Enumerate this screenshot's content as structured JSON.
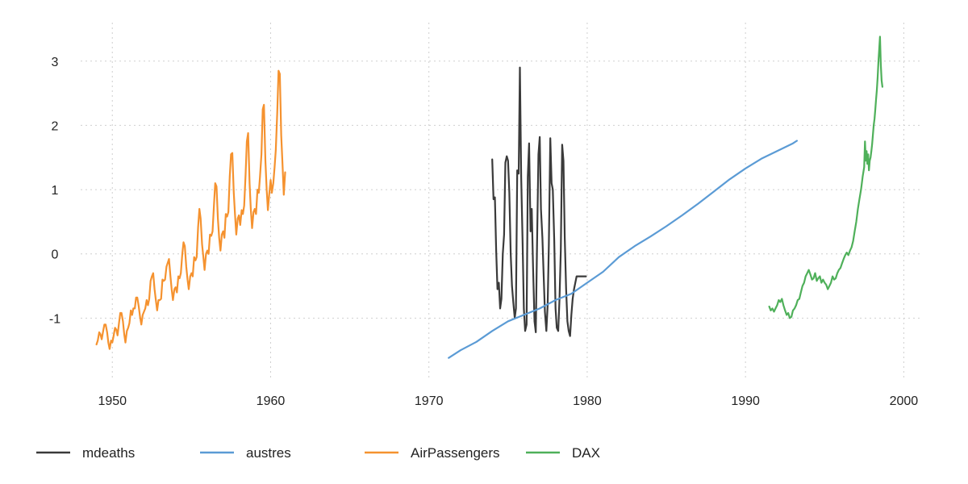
{
  "chart_data": {
    "type": "line",
    "title": "",
    "xlabel": "",
    "ylabel": "",
    "xlim": [
      1948,
      2001
    ],
    "ylim": [
      -1.95,
      3.6
    ],
    "grid": true,
    "legend_position": "bottom",
    "x_ticks": [
      1950,
      1960,
      1970,
      1980,
      1990,
      2000
    ],
    "x_tick_labels": [
      "1950",
      "1960",
      "1970",
      "1980",
      "1990",
      "2000"
    ],
    "y_ticks": [
      -1,
      0,
      1,
      2,
      3
    ],
    "y_tick_labels": [
      "-1",
      "0",
      "1",
      "2",
      "3"
    ],
    "series": [
      {
        "name": "mdeaths",
        "color": "#3a3a3a",
        "x": [
          1974.0,
          1974.08,
          1974.17,
          1974.25,
          1974.33,
          1974.42,
          1974.5,
          1974.58,
          1974.67,
          1974.75,
          1974.83,
          1974.92,
          1975.0,
          1975.08,
          1975.17,
          1975.25,
          1975.33,
          1975.42,
          1975.5,
          1975.58,
          1975.67,
          1975.75,
          1975.83,
          1975.92,
          1976.0,
          1976.08,
          1976.17,
          1976.25,
          1976.33,
          1976.42,
          1976.5,
          1976.58,
          1976.67,
          1976.75,
          1976.83,
          1976.92,
          1977.0,
          1977.08,
          1977.17,
          1977.25,
          1977.33,
          1977.42,
          1977.5,
          1977.58,
          1977.67,
          1977.75,
          1977.83,
          1977.92,
          1978.0,
          1978.08,
          1978.17,
          1978.25,
          1978.33,
          1978.42,
          1978.5,
          1978.58,
          1978.67,
          1978.75,
          1978.83,
          1978.92,
          1979.0,
          1979.08,
          1979.17,
          1979.25,
          1979.33,
          1979.42,
          1979.5,
          1979.58,
          1979.67,
          1979.75,
          1979.83,
          1979.92
        ],
        "values": [
          1.47,
          0.85,
          0.88,
          0.05,
          -0.55,
          -0.45,
          -0.85,
          -0.7,
          0.0,
          0.3,
          1.42,
          1.52,
          1.45,
          0.95,
          0.0,
          -0.5,
          -0.75,
          -1.0,
          -0.85,
          1.3,
          1.25,
          2.9,
          1.2,
          0.15,
          -0.85,
          -1.2,
          -1.1,
          1.2,
          1.72,
          0.35,
          0.7,
          -0.2,
          -1.05,
          -1.22,
          0.1,
          1.55,
          1.82,
          0.7,
          0.25,
          -0.35,
          -0.9,
          -1.2,
          -0.8,
          0.15,
          1.8,
          1.1,
          1.0,
          0.2,
          -0.85,
          -1.15,
          -1.2,
          -0.7,
          0.05,
          1.7,
          1.45,
          0.25,
          -0.55,
          -1.05,
          -1.2,
          -1.28,
          -0.95,
          -0.7,
          -0.55,
          -0.45,
          -0.35,
          -0.35,
          -0.35,
          -0.35,
          -0.35,
          -0.35,
          -0.35,
          -0.35
        ]
      },
      {
        "name": "austres",
        "color": "#5b9bd5",
        "x": [
          1971.25,
          1972,
          1973,
          1974,
          1975,
          1976,
          1977,
          1978,
          1979,
          1980,
          1981,
          1982,
          1983,
          1984,
          1985,
          1986,
          1987,
          1988,
          1989,
          1990,
          1991,
          1992,
          1993,
          1993.25
        ],
        "values": [
          -1.62,
          -1.5,
          -1.37,
          -1.2,
          -1.05,
          -0.95,
          -0.85,
          -0.72,
          -0.62,
          -0.45,
          -0.28,
          -0.05,
          0.12,
          0.27,
          0.43,
          0.6,
          0.78,
          0.97,
          1.16,
          1.33,
          1.48,
          1.6,
          1.72,
          1.76
        ]
      },
      {
        "name": "AirPassengers",
        "color": "#f5922f",
        "x": [
          1949.0,
          1949.08,
          1949.17,
          1949.25,
          1949.33,
          1949.42,
          1949.5,
          1949.58,
          1949.67,
          1949.75,
          1949.83,
          1949.92,
          1950.0,
          1950.08,
          1950.17,
          1950.25,
          1950.33,
          1950.42,
          1950.5,
          1950.58,
          1950.67,
          1950.75,
          1950.83,
          1950.92,
          1951.0,
          1951.08,
          1951.17,
          1951.25,
          1951.33,
          1951.42,
          1951.5,
          1951.58,
          1951.67,
          1951.75,
          1951.83,
          1951.92,
          1952.0,
          1952.08,
          1952.17,
          1952.25,
          1952.33,
          1952.42,
          1952.5,
          1952.58,
          1952.67,
          1952.75,
          1952.83,
          1952.92,
          1953.0,
          1953.08,
          1953.17,
          1953.25,
          1953.33,
          1953.42,
          1953.5,
          1953.58,
          1953.67,
          1953.75,
          1953.83,
          1953.92,
          1954.0,
          1954.08,
          1954.17,
          1954.25,
          1954.33,
          1954.42,
          1954.5,
          1954.58,
          1954.67,
          1954.75,
          1954.83,
          1954.92,
          1955.0,
          1955.08,
          1955.17,
          1955.25,
          1955.33,
          1955.42,
          1955.5,
          1955.58,
          1955.67,
          1955.75,
          1955.83,
          1955.92,
          1956.0,
          1956.08,
          1956.17,
          1956.25,
          1956.33,
          1956.42,
          1956.5,
          1956.58,
          1956.67,
          1956.75,
          1956.83,
          1956.92,
          1957.0,
          1957.08,
          1957.17,
          1957.25,
          1957.33,
          1957.42,
          1957.5,
          1957.58,
          1957.67,
          1957.75,
          1957.83,
          1957.92,
          1958.0,
          1958.08,
          1958.17,
          1958.25,
          1958.33,
          1958.42,
          1958.5,
          1958.58,
          1958.67,
          1958.75,
          1958.83,
          1958.92,
          1959.0,
          1959.08,
          1959.17,
          1959.25,
          1959.33,
          1959.42,
          1959.5,
          1959.58,
          1959.67,
          1959.75,
          1959.83,
          1959.92,
          1960.0,
          1960.08,
          1960.17,
          1960.25,
          1960.33,
          1960.42,
          1960.5,
          1960.58,
          1960.67,
          1960.75,
          1960.83,
          1960.92
        ],
        "values": [
          -1.41,
          -1.35,
          -1.22,
          -1.25,
          -1.33,
          -1.2,
          -1.1,
          -1.1,
          -1.22,
          -1.38,
          -1.48,
          -1.35,
          -1.38,
          -1.28,
          -1.15,
          -1.18,
          -1.27,
          -1.08,
          -0.92,
          -0.92,
          -1.05,
          -1.25,
          -1.38,
          -1.2,
          -1.15,
          -1.08,
          -0.88,
          -0.95,
          -0.85,
          -0.85,
          -0.68,
          -0.68,
          -0.82,
          -0.98,
          -1.1,
          -0.95,
          -0.9,
          -0.85,
          -0.72,
          -0.8,
          -0.7,
          -0.42,
          -0.35,
          -0.3,
          -0.55,
          -0.72,
          -0.88,
          -0.72,
          -0.72,
          -0.7,
          -0.4,
          -0.42,
          -0.4,
          -0.2,
          -0.14,
          -0.08,
          -0.35,
          -0.55,
          -0.72,
          -0.55,
          -0.52,
          -0.6,
          -0.35,
          -0.38,
          -0.3,
          0.0,
          0.18,
          0.12,
          -0.2,
          -0.4,
          -0.55,
          -0.35,
          -0.3,
          -0.35,
          -0.05,
          -0.1,
          -0.05,
          0.42,
          0.7,
          0.55,
          0.15,
          -0.05,
          -0.25,
          0.0,
          0.05,
          0.0,
          0.3,
          0.28,
          0.35,
          0.75,
          1.1,
          1.05,
          0.55,
          0.25,
          0.05,
          0.3,
          0.35,
          0.25,
          0.62,
          0.58,
          0.65,
          1.2,
          1.55,
          1.57,
          0.95,
          0.62,
          0.3,
          0.55,
          0.6,
          0.45,
          0.68,
          0.62,
          0.75,
          1.25,
          1.75,
          1.88,
          1.1,
          0.7,
          0.4,
          0.65,
          0.7,
          0.62,
          1.0,
          0.95,
          1.2,
          1.55,
          2.25,
          2.32,
          1.45,
          1.0,
          0.68,
          0.95,
          1.15,
          0.95,
          1.1,
          1.35,
          1.62,
          2.2,
          2.85,
          2.8,
          1.85,
          1.4,
          0.92,
          1.27
        ]
      },
      {
        "name": "DAX",
        "color": "#4fb05a",
        "x": [
          1991.5,
          1991.6,
          1991.7,
          1991.8,
          1991.9,
          1992.0,
          1992.1,
          1992.2,
          1992.3,
          1992.4,
          1992.5,
          1992.6,
          1992.7,
          1992.8,
          1992.9,
          1993.0,
          1993.1,
          1993.2,
          1993.3,
          1993.4,
          1993.5,
          1993.6,
          1993.7,
          1993.8,
          1993.9,
          1994.0,
          1994.1,
          1994.2,
          1994.3,
          1994.4,
          1994.5,
          1994.6,
          1994.7,
          1994.8,
          1994.9,
          1995.0,
          1995.1,
          1995.2,
          1995.3,
          1995.4,
          1995.5,
          1995.6,
          1995.7,
          1995.8,
          1995.9,
          1996.0,
          1996.1,
          1996.2,
          1996.3,
          1996.4,
          1996.5,
          1996.6,
          1996.7,
          1996.8,
          1996.9,
          1997.0,
          1997.1,
          1997.2,
          1997.3,
          1997.4,
          1997.5,
          1997.55,
          1997.6,
          1997.65,
          1997.7,
          1997.75,
          1997.8,
          1997.85,
          1997.9,
          1997.95,
          1998.0,
          1998.05,
          1998.1,
          1998.15,
          1998.2,
          1998.25,
          1998.3,
          1998.35,
          1998.4,
          1998.45,
          1998.5,
          1998.55,
          1998.6,
          1998.65
        ],
        "values": [
          -0.82,
          -0.88,
          -0.85,
          -0.9,
          -0.85,
          -0.8,
          -0.72,
          -0.75,
          -0.7,
          -0.8,
          -0.88,
          -0.95,
          -0.92,
          -1.0,
          -0.98,
          -0.88,
          -0.85,
          -0.8,
          -0.72,
          -0.7,
          -0.6,
          -0.5,
          -0.45,
          -0.35,
          -0.3,
          -0.25,
          -0.32,
          -0.4,
          -0.38,
          -0.3,
          -0.42,
          -0.38,
          -0.35,
          -0.45,
          -0.4,
          -0.45,
          -0.48,
          -0.55,
          -0.5,
          -0.45,
          -0.35,
          -0.4,
          -0.38,
          -0.3,
          -0.25,
          -0.22,
          -0.15,
          -0.08,
          -0.02,
          0.02,
          -0.02,
          0.05,
          0.1,
          0.2,
          0.35,
          0.5,
          0.7,
          0.85,
          1.0,
          1.2,
          1.35,
          1.75,
          1.45,
          1.6,
          1.4,
          1.55,
          1.3,
          1.45,
          1.5,
          1.6,
          1.7,
          1.85,
          2.0,
          2.1,
          2.25,
          2.4,
          2.55,
          2.75,
          3.0,
          3.2,
          3.38,
          2.95,
          2.7,
          2.6
        ]
      }
    ]
  }
}
